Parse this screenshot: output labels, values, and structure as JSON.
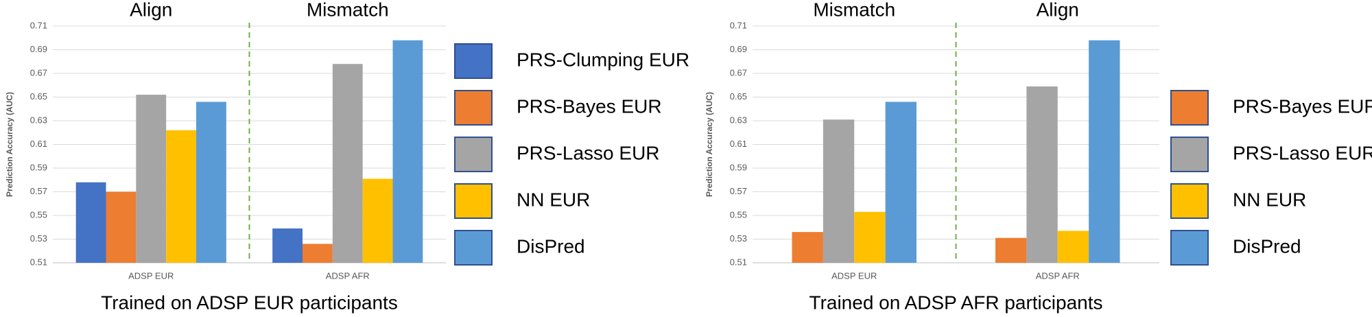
{
  "chart_data": [
    {
      "type": "bar",
      "group_labels": [
        "Align",
        "Mismatch"
      ],
      "x_label": "Trained on ADSP EUR participants",
      "y_label": "Prediction Accuracy (AUC)",
      "categories": [
        "ADSP EUR",
        "ADSP AFR"
      ],
      "series": [
        {
          "name": "PRS-Clumping EUR",
          "color": "#4472c4",
          "values": [
            0.578,
            0.539
          ]
        },
        {
          "name": "PRS-Bayes EUR",
          "color": "#ed7d31",
          "values": [
            0.57,
            0.526
          ]
        },
        {
          "name": "PRS-Lasso EUR",
          "color": "#a5a5a5",
          "values": [
            0.652,
            0.678
          ]
        },
        {
          "name": "NN EUR",
          "color": "#ffc000",
          "values": [
            0.622,
            0.581
          ]
        },
        {
          "name": "DisPred",
          "color": "#5b9bd5",
          "values": [
            0.646,
            0.698
          ]
        }
      ],
      "ylim": [
        0.51,
        0.71
      ],
      "yticks": [
        0.51,
        0.53,
        0.55,
        0.57,
        0.59,
        0.61,
        0.63,
        0.65,
        0.67,
        0.69,
        0.71
      ],
      "grid": true,
      "legend": "right"
    },
    {
      "type": "bar",
      "group_labels": [
        "Mismatch",
        "Align"
      ],
      "x_label": "Trained on ADSP AFR participants",
      "y_label": "Prediction Accuracy (AUC)",
      "categories": [
        "ADSP EUR",
        "ADSP AFR"
      ],
      "series": [
        {
          "name": "PRS-Bayes EUR",
          "color": "#ed7d31",
          "values": [
            0.536,
            0.531
          ]
        },
        {
          "name": "PRS-Lasso EUR",
          "color": "#a5a5a5",
          "values": [
            0.631,
            0.659
          ]
        },
        {
          "name": "NN EUR",
          "color": "#ffc000",
          "values": [
            0.553,
            0.537
          ]
        },
        {
          "name": "DisPred",
          "color": "#5b9bd5",
          "values": [
            0.646,
            0.698
          ]
        }
      ],
      "ylim": [
        0.51,
        0.71
      ],
      "yticks": [
        0.51,
        0.53,
        0.55,
        0.57,
        0.59,
        0.61,
        0.63,
        0.65,
        0.67,
        0.69,
        0.71
      ],
      "grid": true,
      "legend": "right"
    }
  ]
}
